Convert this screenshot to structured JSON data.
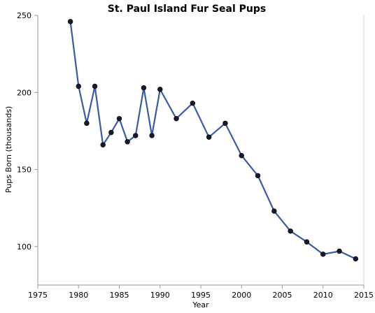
{
  "chart_data": {
    "type": "line",
    "title": "St. Paul Island Fur Seal Pups",
    "xlabel": "Year",
    "ylabel": "Pups Born (thousands)",
    "xlim": [
      1975,
      2015
    ],
    "ylim": [
      75,
      250
    ],
    "xticks": [
      1975,
      1980,
      1985,
      1990,
      1995,
      2000,
      2005,
      2010,
      2015
    ],
    "yticks": [
      100,
      150,
      200,
      250
    ],
    "grid": false,
    "line_color": "#3b5ba6",
    "marker_color": "#1a1a2e",
    "series": [
      {
        "x": [
          1979,
          1980,
          1981,
          1982,
          1983,
          1984,
          1985,
          1986,
          1987,
          1988,
          1989,
          1990,
          1992,
          1994,
          1996,
          1998,
          2000,
          2002,
          2004,
          2006,
          2008,
          2010,
          2012,
          2014
        ],
        "y": [
          246,
          204,
          180,
          204,
          166,
          174,
          183,
          168,
          172,
          203,
          172,
          202,
          183,
          193,
          171,
          180,
          159,
          146,
          123,
          110,
          103,
          95,
          97,
          92
        ]
      }
    ]
  }
}
